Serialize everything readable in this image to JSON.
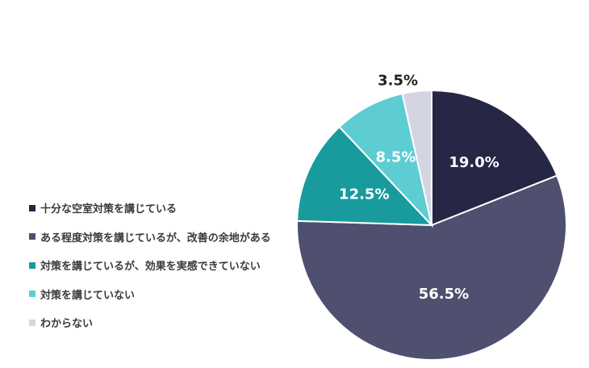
{
  "chart_data": {
    "type": "pie",
    "categories": [
      "十分な空室対策を講じている",
      "ある程度対策を講じているが、改善の余地がある",
      "対策を講じているが、効果を実感できていない",
      "対策を講じていない",
      "わからない"
    ],
    "values": [
      19.0,
      56.5,
      12.5,
      8.5,
      3.5
    ],
    "labels": [
      "19.0%",
      "56.5%",
      "12.5%",
      "8.5%",
      "3.5%"
    ],
    "colors": [
      "#252745",
      "#4f4f6f",
      "#199b9e",
      "#5ecdd3",
      "#d3d6e2"
    ],
    "label_colors": [
      "#ffffff",
      "#ffffff",
      "#ffffff",
      "#ffffff",
      "#222222"
    ],
    "start_angle_deg": 0,
    "direction": "clockwise",
    "legend_position": "left"
  }
}
